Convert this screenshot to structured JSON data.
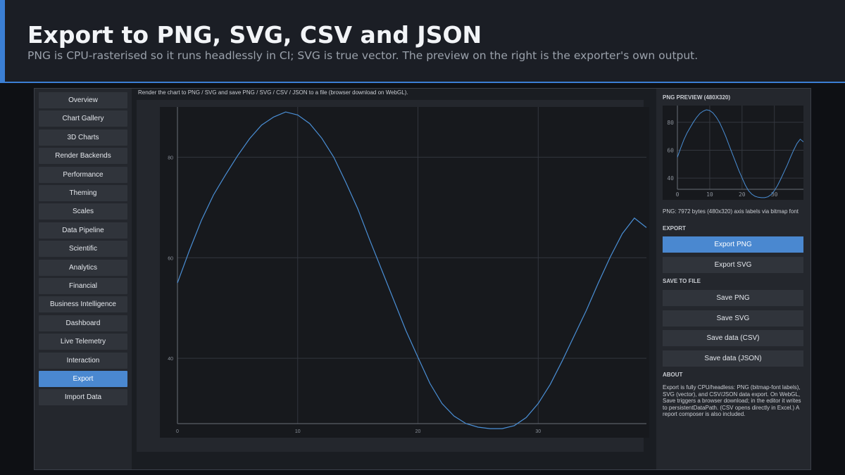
{
  "header": {
    "title": "Export to PNG, SVG, CSV and JSON",
    "subtitle": "PNG is CPU-rasterised so it runs headlessly in CI; SVG is true vector. The preview on the right is the exporter's own output."
  },
  "sidebar": {
    "items": [
      {
        "label": "Overview",
        "active": false
      },
      {
        "label": "Chart Gallery",
        "active": false
      },
      {
        "label": "3D Charts",
        "active": false
      },
      {
        "label": "Render Backends",
        "active": false
      },
      {
        "label": "Performance",
        "active": false
      },
      {
        "label": "Theming",
        "active": false
      },
      {
        "label": "Scales",
        "active": false
      },
      {
        "label": "Data Pipeline",
        "active": false
      },
      {
        "label": "Scientific",
        "active": false
      },
      {
        "label": "Analytics",
        "active": false
      },
      {
        "label": "Financial",
        "active": false
      },
      {
        "label": "Business Intelligence",
        "active": false
      },
      {
        "label": "Dashboard",
        "active": false
      },
      {
        "label": "Live Telemetry",
        "active": false
      },
      {
        "label": "Interaction",
        "active": false
      },
      {
        "label": "Export",
        "active": true
      },
      {
        "label": "Import Data",
        "active": false
      }
    ]
  },
  "main": {
    "description": "Render the chart to PNG / SVG and save PNG / SVG / CSV / JSON to a file (browser download on WebGL)."
  },
  "chart_data": [
    {
      "type": "line",
      "title": "",
      "xlabel": "",
      "ylabel": "",
      "xlim": [
        0,
        39
      ],
      "ylim": [
        27,
        90
      ],
      "xticks": [
        0,
        10,
        20,
        30
      ],
      "yticks": [
        40,
        60,
        80
      ],
      "grid": true,
      "line_color": "#4a8fd6",
      "series": [
        {
          "x": [
            0,
            1,
            2,
            3,
            4,
            5,
            6,
            7,
            8,
            9,
            10,
            11,
            12,
            13,
            14,
            15,
            16,
            17,
            18,
            19,
            20,
            21,
            22,
            23,
            24,
            25,
            26,
            27,
            28,
            29,
            30,
            31,
            32,
            33,
            34,
            35,
            36,
            37,
            38,
            39
          ],
          "values": [
            55,
            61.5,
            67.5,
            72.5,
            76.5,
            80.3,
            83.7,
            86.4,
            88,
            89,
            88.4,
            86.7,
            83.8,
            80,
            75,
            69.7,
            63.5,
            57.5,
            51.5,
            45.5,
            40.2,
            35,
            31,
            28.5,
            27,
            26.3,
            26,
            26,
            26.6,
            28.2,
            31,
            34.8,
            39.5,
            44.5,
            49.5,
            55,
            60.2,
            64.8,
            67.9,
            66
          ]
        }
      ]
    },
    {
      "type": "line",
      "title": "",
      "xlabel": "",
      "ylabel": "",
      "xlim": [
        0,
        39
      ],
      "ylim": [
        32,
        92
      ],
      "xticks": [
        0,
        10,
        20,
        30
      ],
      "yticks": [
        40,
        60,
        80
      ],
      "grid": true,
      "line_color": "#4a8fd6",
      "series": [
        {
          "x": [
            0,
            1,
            2,
            3,
            4,
            5,
            6,
            7,
            8,
            9,
            10,
            11,
            12,
            13,
            14,
            15,
            16,
            17,
            18,
            19,
            20,
            21,
            22,
            23,
            24,
            25,
            26,
            27,
            28,
            29,
            30,
            31,
            32,
            33,
            34,
            35,
            36,
            37,
            38,
            39
          ],
          "values": [
            55,
            61.5,
            67.5,
            72.5,
            76.5,
            80.3,
            83.7,
            86.4,
            88,
            89,
            88.4,
            86.7,
            83.8,
            80,
            75,
            69.7,
            63.5,
            57.5,
            51.5,
            45.5,
            40.2,
            35,
            31,
            28.5,
            27,
            26.3,
            26,
            26,
            26.6,
            28.2,
            31,
            34.8,
            39.5,
            44.5,
            49.5,
            55,
            60.2,
            64.8,
            67.9,
            66
          ]
        }
      ]
    }
  ],
  "rpanel": {
    "preview_title": "PNG PREVIEW (480X320)",
    "png_info": "PNG: 7972 bytes (480x320)  axis labels via bitmap font",
    "export_title": "EXPORT",
    "export_buttons": [
      {
        "label": "Export PNG",
        "primary": true
      },
      {
        "label": "Export SVG",
        "primary": false
      }
    ],
    "save_title": "SAVE TO FILE",
    "save_buttons": [
      {
        "label": "Save PNG"
      },
      {
        "label": "Save SVG"
      },
      {
        "label": "Save data (CSV)"
      },
      {
        "label": "Save data (JSON)"
      }
    ],
    "about_title": "ABOUT",
    "about_text": "Export is fully CPU/headless: PNG (bitmap-font labels), SVG (vector), and CSV/JSON data export. On WebGL, Save triggers a browser download; in the editor it writes to persistentDataPath. (CSV opens directly in Excel.) A report composer is also included."
  },
  "colors": {
    "accent": "#4a88d0",
    "line": "#4a8fd6",
    "panel": "#24272d",
    "plot_bg": "#17191d"
  }
}
